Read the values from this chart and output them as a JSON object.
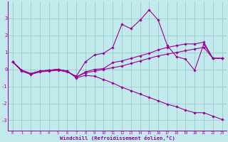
{
  "bg_color": "#c2eaec",
  "grid_color": "#99cccc",
  "line_color": "#990099",
  "xlabel": "Windchill (Refroidissement éolien,°C)",
  "x": [
    0,
    1,
    2,
    3,
    4,
    5,
    6,
    7,
    8,
    9,
    10,
    11,
    12,
    13,
    14,
    15,
    16,
    17,
    18,
    19,
    20,
    21,
    22,
    23
  ],
  "line1": [
    0.45,
    -0.1,
    -0.3,
    -0.15,
    -0.1,
    -0.05,
    -0.15,
    -0.4,
    0.45,
    0.85,
    0.95,
    1.3,
    2.65,
    2.4,
    2.9,
    3.5,
    2.9,
    1.4,
    0.75,
    0.6,
    -0.05,
    1.5,
    0.65,
    0.65
  ],
  "line2": [
    0.45,
    -0.05,
    -0.25,
    -0.1,
    -0.05,
    0.0,
    -0.1,
    -0.45,
    -0.15,
    0.0,
    0.05,
    0.4,
    0.5,
    0.65,
    0.8,
    0.95,
    1.15,
    1.3,
    1.4,
    1.5,
    1.5,
    1.6,
    0.65,
    0.65
  ],
  "line3": [
    0.45,
    -0.05,
    -0.25,
    -0.1,
    -0.05,
    0.0,
    -0.1,
    -0.45,
    -0.2,
    -0.1,
    0.0,
    0.1,
    0.2,
    0.35,
    0.5,
    0.65,
    0.8,
    0.9,
    1.0,
    1.1,
    1.2,
    1.3,
    0.65,
    0.65
  ],
  "line4": [
    0.45,
    -0.05,
    -0.25,
    -0.1,
    -0.05,
    0.0,
    -0.1,
    -0.5,
    -0.35,
    -0.4,
    -0.6,
    -0.8,
    -1.05,
    -1.25,
    -1.45,
    -1.65,
    -1.85,
    -2.05,
    -2.2,
    -2.4,
    -2.55,
    -2.55,
    -2.75,
    -2.95
  ],
  "ylim": [
    -3.6,
    4.0
  ],
  "yticks": [
    -3,
    -2,
    -1,
    0,
    1,
    2,
    3
  ],
  "xlim": [
    -0.5,
    23.5
  ]
}
